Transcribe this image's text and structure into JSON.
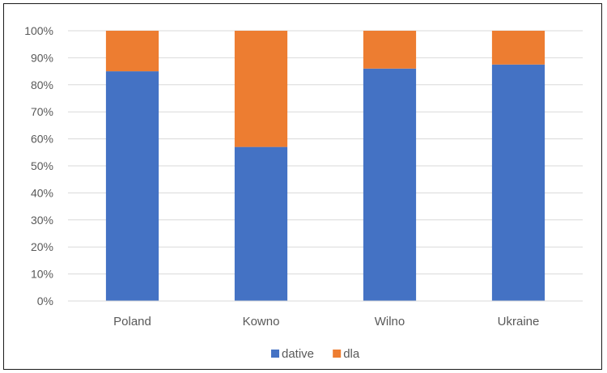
{
  "chart_data": {
    "type": "bar",
    "stacked": true,
    "percent": true,
    "categories": [
      "Poland",
      "Kowno",
      "Wilno",
      "Ukraine"
    ],
    "series": [
      {
        "name": "dative",
        "color": "#4472C4",
        "values": [
          85,
          57,
          86,
          87.5
        ]
      },
      {
        "name": "dla",
        "color": "#ED7D31",
        "values": [
          15,
          43,
          14,
          12.5
        ]
      }
    ],
    "ylim": [
      0,
      100
    ],
    "yticks": [
      "0%",
      "10%",
      "20%",
      "30%",
      "40%",
      "50%",
      "60%",
      "70%",
      "80%",
      "90%",
      "100%"
    ],
    "grid": true,
    "legend": "bottom"
  }
}
